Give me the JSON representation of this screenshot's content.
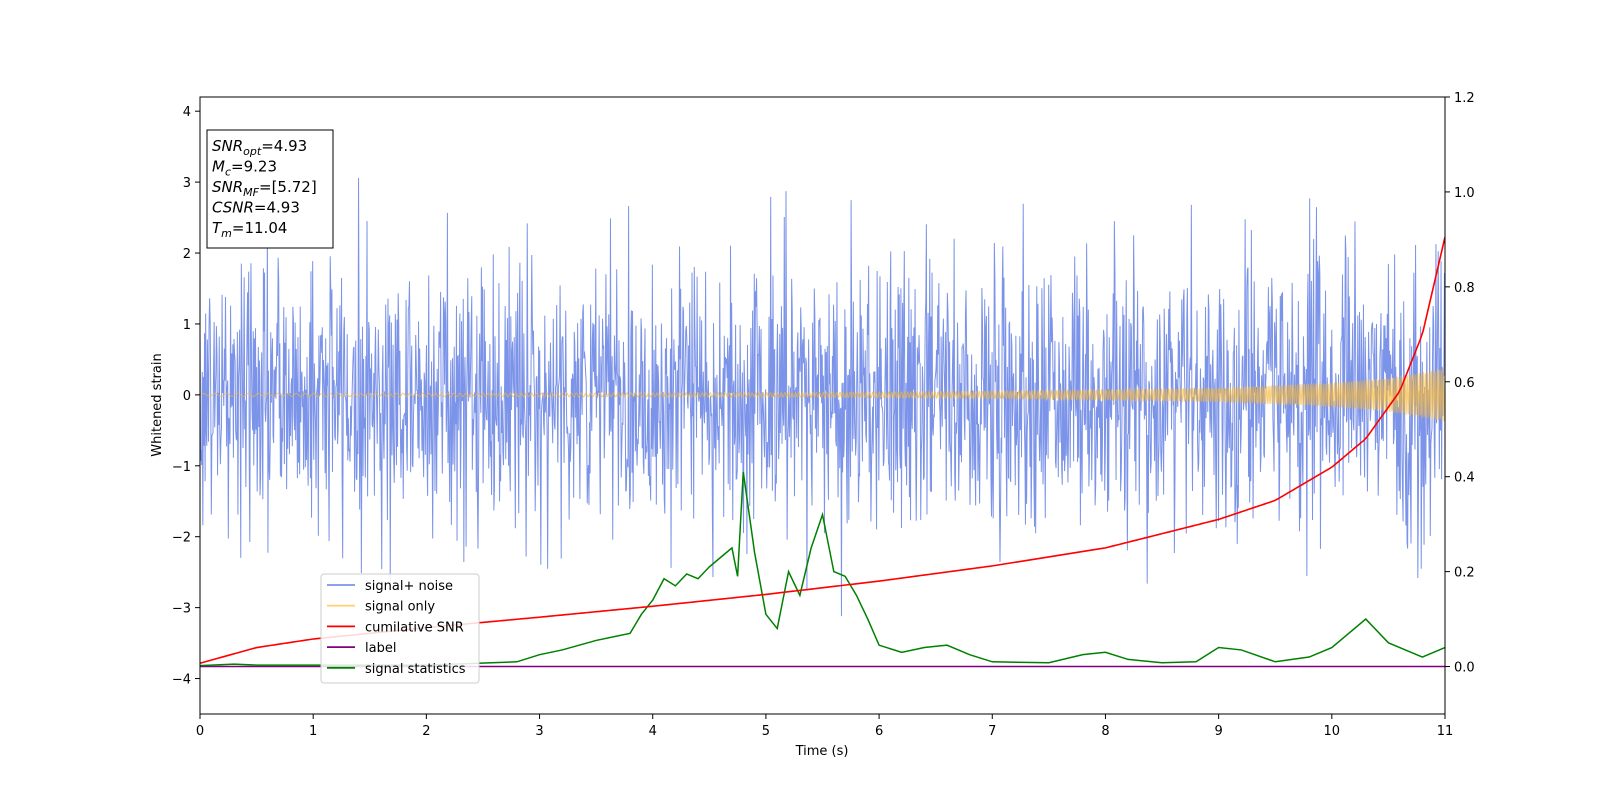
{
  "chart_data": {
    "type": "line",
    "xlabel": "Time (s)",
    "ylabel": "Whitened strain",
    "xlim": [
      0,
      11
    ],
    "ylim": [
      -4.5,
      4.2
    ],
    "ylim_right": [
      -0.1,
      1.2
    ],
    "x_ticks": [
      0,
      1,
      2,
      3,
      4,
      5,
      6,
      7,
      8,
      9,
      10,
      11
    ],
    "y_ticks": [
      -4,
      -3,
      -2,
      -1,
      0,
      1,
      2,
      3,
      4
    ],
    "y_tick_labels": [
      "−4",
      "−3",
      "−2",
      "−1",
      "0",
      "1",
      "2",
      "3",
      "4"
    ],
    "y_right_ticks": [
      0.0,
      0.2,
      0.4,
      0.6,
      0.8,
      1.0,
      1.2
    ],
    "y_right_tick_labels": [
      "0.0",
      "0.2",
      "0.4",
      "0.6",
      "0.8",
      "1.0",
      "1.2"
    ],
    "grid": false,
    "legend_position": "lower-left",
    "colors": {
      "noise": "#7b93e8",
      "signal": "#f5b73a",
      "cumulative": "#ff0000",
      "label": "#800080",
      "statistics": "#008000"
    },
    "legend": [
      {
        "name": "signal+ noise",
        "color": "#7b93e8"
      },
      {
        "name": "signal only",
        "color": "#ffd27a"
      },
      {
        "name": "cumilative SNR",
        "color": "#ff0000"
      },
      {
        "name": "label",
        "color": "#800080"
      },
      {
        "name": "signal statistics",
        "color": "#008000"
      }
    ],
    "info_box": [
      {
        "base": "SNR",
        "sub": "opt",
        "value": "=4.93"
      },
      {
        "base": "M",
        "sub": "c",
        "value": "=9.23"
      },
      {
        "base": "SNR",
        "sub": "MF",
        "value": "=[5.72]"
      },
      {
        "base": "CSNR",
        "sub": "",
        "value": "=4.93"
      },
      {
        "base": "T",
        "sub": "m",
        "value": "=11.04"
      }
    ],
    "series": [
      {
        "name": "signal+ noise",
        "axis": "left",
        "noise_std": 0.95,
        "samples": 2200
      },
      {
        "name": "signal only",
        "axis": "left",
        "envelope": {
          "x": [
            0,
            5,
            7,
            9,
            10,
            10.5,
            11
          ],
          "amp": [
            0.02,
            0.03,
            0.05,
            0.1,
            0.17,
            0.24,
            0.38
          ]
        }
      },
      {
        "name": "cumilative SNR",
        "axis": "right",
        "x": [
          0,
          0.5,
          1,
          2,
          3,
          4,
          5,
          6,
          7,
          8,
          9,
          9.5,
          10,
          10.3,
          10.6,
          10.8,
          11
        ],
        "y": [
          0.007,
          0.04,
          0.058,
          0.082,
          0.104,
          0.127,
          0.152,
          0.18,
          0.212,
          0.25,
          0.31,
          0.35,
          0.42,
          0.48,
          0.58,
          0.7,
          0.905
        ]
      },
      {
        "name": "label",
        "axis": "right",
        "x": [
          0,
          11
        ],
        "y": [
          0.0,
          0.0
        ]
      },
      {
        "name": "signal statistics",
        "axis": "right",
        "x": [
          0,
          0.3,
          0.5,
          1,
          2,
          2.8,
          3,
          3.2,
          3.5,
          3.8,
          3.9,
          4,
          4.1,
          4.2,
          4.3,
          4.4,
          4.5,
          4.6,
          4.7,
          4.75,
          4.8,
          4.85,
          4.9,
          5,
          5.1,
          5.2,
          5.3,
          5.4,
          5.5,
          5.6,
          5.7,
          5.8,
          5.9,
          6,
          6.2,
          6.4,
          6.6,
          6.8,
          7,
          7.5,
          7.8,
          8,
          8.2,
          8.5,
          8.8,
          9,
          9.2,
          9.5,
          9.8,
          10,
          10.3,
          10.5,
          10.8,
          11
        ],
        "y": [
          0.002,
          0.005,
          0.003,
          0.003,
          0.003,
          0.01,
          0.025,
          0.035,
          0.055,
          0.07,
          0.11,
          0.14,
          0.185,
          0.17,
          0.195,
          0.185,
          0.21,
          0.23,
          0.25,
          0.19,
          0.41,
          0.325,
          0.24,
          0.11,
          0.08,
          0.2,
          0.15,
          0.25,
          0.32,
          0.2,
          0.19,
          0.15,
          0.1,
          0.045,
          0.03,
          0.04,
          0.045,
          0.025,
          0.01,
          0.008,
          0.025,
          0.03,
          0.015,
          0.008,
          0.01,
          0.04,
          0.035,
          0.01,
          0.02,
          0.04,
          0.1,
          0.05,
          0.02,
          0.04
        ]
      }
    ]
  }
}
